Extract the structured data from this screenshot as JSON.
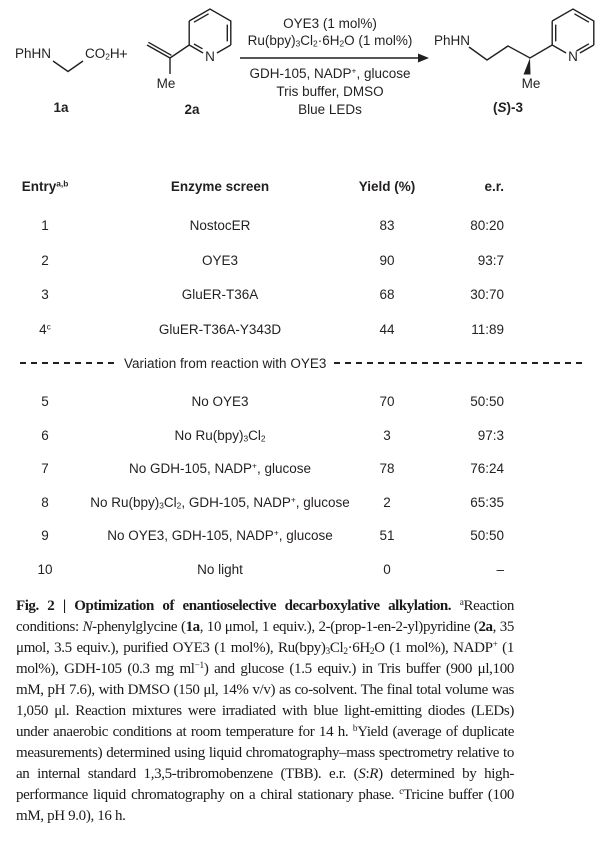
{
  "colors": {
    "text": "#231f20",
    "background": "#ffffff"
  },
  "scheme": {
    "reactant1": {
      "amine": "PhHN",
      "acid": "CO_{2}H",
      "label": "1a"
    },
    "plus": "+",
    "reactant2": {
      "methyl": "Me",
      "nitrogen": "N",
      "label": "2a"
    },
    "conditions_above": [
      "OYE3 (1 mol%)",
      "Ru(bpy)_{3}Cl_{2}·6H_{2}O (1 mol%)"
    ],
    "conditions_below": [
      "GDH-105, NADP^{+}, glucose",
      "Tris buffer, DMSO",
      "Blue LEDs"
    ],
    "product": {
      "amine": "PhHN",
      "methyl": "Me",
      "nitrogen": "N",
      "label": "(*S*)-3"
    }
  },
  "table": {
    "headers": {
      "entry": "Entry^{a,b}",
      "enzyme": "Enzyme screen",
      "yield": "Yield (%)",
      "er": "e.r."
    },
    "divider_label": "Variation from reaction with OYE3",
    "divider_after_row": 4,
    "rows": [
      {
        "entry": "1",
        "enzyme": "NostocER",
        "yield": "83",
        "er": "80:20"
      },
      {
        "entry": "2",
        "enzyme": "OYE3",
        "yield": "90",
        "er": "93:7"
      },
      {
        "entry": "3",
        "enzyme": "GluER-T36A",
        "yield": "68",
        "er": "30:70"
      },
      {
        "entry": "4^{c}",
        "enzyme": "GluER-T36A-Y343D",
        "yield": "44",
        "er": "11:89"
      },
      {
        "entry": "5",
        "enzyme": "No OYE3",
        "yield": "70",
        "er": "50:50"
      },
      {
        "entry": "6",
        "enzyme": "No Ru(bpy)_{3}Cl_{2}",
        "yield": "3",
        "er": "97:3"
      },
      {
        "entry": "7",
        "enzyme": "No GDH-105, NADP^{+}, glucose",
        "yield": "78",
        "er": "76:24"
      },
      {
        "entry": "8",
        "enzyme": "No Ru(bpy)_{3}Cl_{2}, GDH-105, NADP^{+}, glucose",
        "yield": "2",
        "er": "65:35"
      },
      {
        "entry": "9",
        "enzyme": "No OYE3, GDH-105, NADP^{+}, glucose",
        "yield": "51",
        "er": "50:50"
      },
      {
        "entry": "10",
        "enzyme": "No light",
        "yield": "0",
        "er": "–"
      }
    ]
  },
  "caption": {
    "text": "**Fig. 2 | Optimization of enantioselective decarboxylative alkylation.** ^{a}Reaction conditions: *N*-phenylglycine (**1a**, 10 μmol, 1 equiv.), 2-(prop-1-en-2-yl)pyridine (**2a**, 35 μmol, 3.5 equiv.), purified OYE3 (1 mol%), Ru(bpy)_{3}Cl_{2}·6H_{2}O (1 mol%), NADP^{+} (1 mol%), GDH-105 (0.3 mg ml^{−1}) and glucose (1.5 equiv.) in Tris buffer (900 μl,100 mM, pH 7.6), with DMSO (150 μl, 14% v/v) as co-solvent. The final total volume was 1,050 μl. Reaction mixtures were irradiated with blue light-emitting diodes (LEDs) under anaerobic conditions at room temperature for 14 h. ^{b}Yield (average of duplicate measurements) determined using liquid chromatography–mass spectrometry relative to an internal standard 1,3,5-tribromobenzene (TBB). e.r. (*S*:*R*) determined by high-performance liquid chromatography on a chiral stationary phase. ^{c}Tricine buffer (100 mM, pH 9.0), 16 h."
  }
}
